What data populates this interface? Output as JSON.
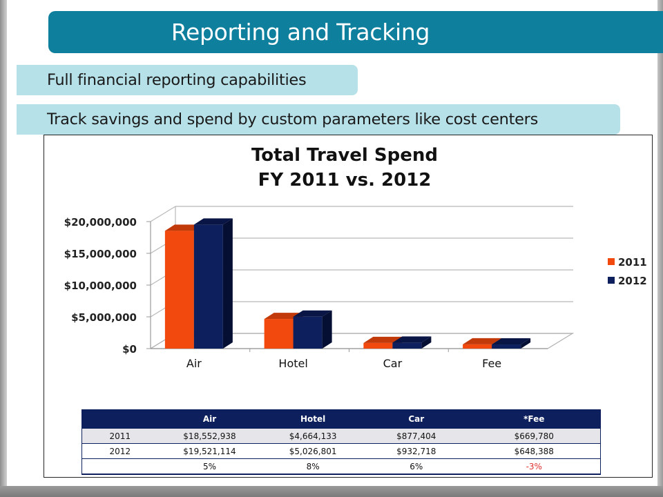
{
  "slide": {
    "title": "Reporting and Tracking",
    "bullets": [
      "Full financial reporting capabilities",
      "Track savings and spend by custom parameters like cost centers"
    ]
  },
  "chart_data": {
    "type": "bar",
    "title": "Total Travel Spend",
    "subtitle": "FY 2011 vs. 2012",
    "categories": [
      "Air",
      "Hotel",
      "Car",
      "Fee"
    ],
    "series": [
      {
        "name": "2011",
        "values": [
          18552938,
          4664133,
          877404,
          669780
        ]
      },
      {
        "name": "2012",
        "values": [
          19521114,
          5026801,
          932718,
          648388
        ]
      }
    ],
    "ylim": [
      0,
      20000000
    ],
    "yticks": [
      0,
      5000000,
      10000000,
      15000000,
      20000000
    ],
    "ytick_labels": [
      "$0",
      "$5,000,000",
      "$10,000,000",
      "$15,000,000",
      "$20,000,000"
    ],
    "grid": true,
    "legend_position": "right",
    "colors": {
      "2011": "#f24a0e",
      "2012": "#0d1f5c"
    }
  },
  "table": {
    "headers": [
      "",
      "Air",
      "Hotel",
      "Car",
      "*Fee"
    ],
    "rows": [
      [
        "2011",
        "$18,552,938",
        "$4,664,133",
        "$877,404",
        "$669,780"
      ],
      [
        "2012",
        "$19,521,114",
        "$5,026,801",
        "$932,718",
        "$648,388"
      ],
      [
        "",
        "5%",
        "8%",
        "6%",
        "-3%"
      ]
    ]
  }
}
